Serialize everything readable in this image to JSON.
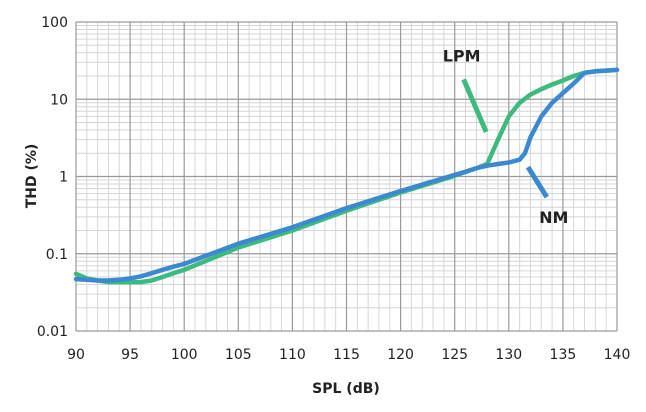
{
  "chart_data": {
    "type": "line",
    "title": "",
    "xlabel": "SPL (dB)",
    "ylabel": "THD (%)",
    "x_scale": "linear",
    "y_scale": "log",
    "xlim": [
      90,
      140
    ],
    "ylim": [
      0.01,
      100
    ],
    "x_ticks": [
      "90",
      "95",
      "100",
      "105",
      "110",
      "115",
      "120",
      "125",
      "130",
      "135",
      "140"
    ],
    "y_ticks": [
      "0.01",
      "0.1",
      "1",
      "10",
      "100"
    ],
    "grid": true,
    "legend": "none",
    "series": [
      {
        "name": "LPM",
        "color": "#3dbb7f",
        "points": [
          [
            90,
            0.055
          ],
          [
            91,
            0.048
          ],
          [
            92,
            0.045
          ],
          [
            93,
            0.043
          ],
          [
            94,
            0.043
          ],
          [
            95,
            0.043
          ],
          [
            96,
            0.043
          ],
          [
            97,
            0.045
          ],
          [
            98,
            0.05
          ],
          [
            99,
            0.056
          ],
          [
            100,
            0.062
          ],
          [
            105,
            0.12
          ],
          [
            110,
            0.2
          ],
          [
            115,
            0.36
          ],
          [
            120,
            0.62
          ],
          [
            125,
            1.02
          ],
          [
            126,
            1.15
          ],
          [
            127,
            1.28
          ],
          [
            128,
            1.45
          ],
          [
            129,
            3.0
          ],
          [
            130,
            6.0
          ],
          [
            131,
            9.0
          ],
          [
            132,
            11.5
          ],
          [
            133,
            13.5
          ],
          [
            134,
            15.5
          ],
          [
            135,
            17.5
          ],
          [
            136,
            20.0
          ],
          [
            137,
            22.0
          ],
          [
            138,
            23.0
          ],
          [
            139,
            23.5
          ],
          [
            140,
            24.0
          ]
        ]
      },
      {
        "name": "NM",
        "color": "#3b8ad1",
        "points": [
          [
            90,
            0.047
          ],
          [
            91,
            0.046
          ],
          [
            92,
            0.045
          ],
          [
            93,
            0.045
          ],
          [
            94,
            0.046
          ],
          [
            95,
            0.048
          ],
          [
            96,
            0.051
          ],
          [
            97,
            0.056
          ],
          [
            98,
            0.062
          ],
          [
            99,
            0.068
          ],
          [
            100,
            0.074
          ],
          [
            105,
            0.135
          ],
          [
            110,
            0.22
          ],
          [
            115,
            0.39
          ],
          [
            120,
            0.65
          ],
          [
            125,
            1.05
          ],
          [
            126,
            1.15
          ],
          [
            127,
            1.28
          ],
          [
            128,
            1.38
          ],
          [
            129,
            1.45
          ],
          [
            130,
            1.52
          ],
          [
            131,
            1.65
          ],
          [
            131.5,
            2.0
          ],
          [
            132,
            3.2
          ],
          [
            133,
            6.0
          ],
          [
            134,
            9.0
          ],
          [
            135,
            12.0
          ],
          [
            136,
            16.0
          ],
          [
            137,
            22.0
          ],
          [
            138,
            23.0
          ],
          [
            139,
            23.5
          ],
          [
            140,
            24.0
          ]
        ]
      }
    ],
    "annotations": [
      {
        "text": "LPM",
        "series": "LPM",
        "near_x": 128.6
      },
      {
        "text": "NM",
        "series": "NM",
        "near_x": 131.2
      }
    ]
  }
}
